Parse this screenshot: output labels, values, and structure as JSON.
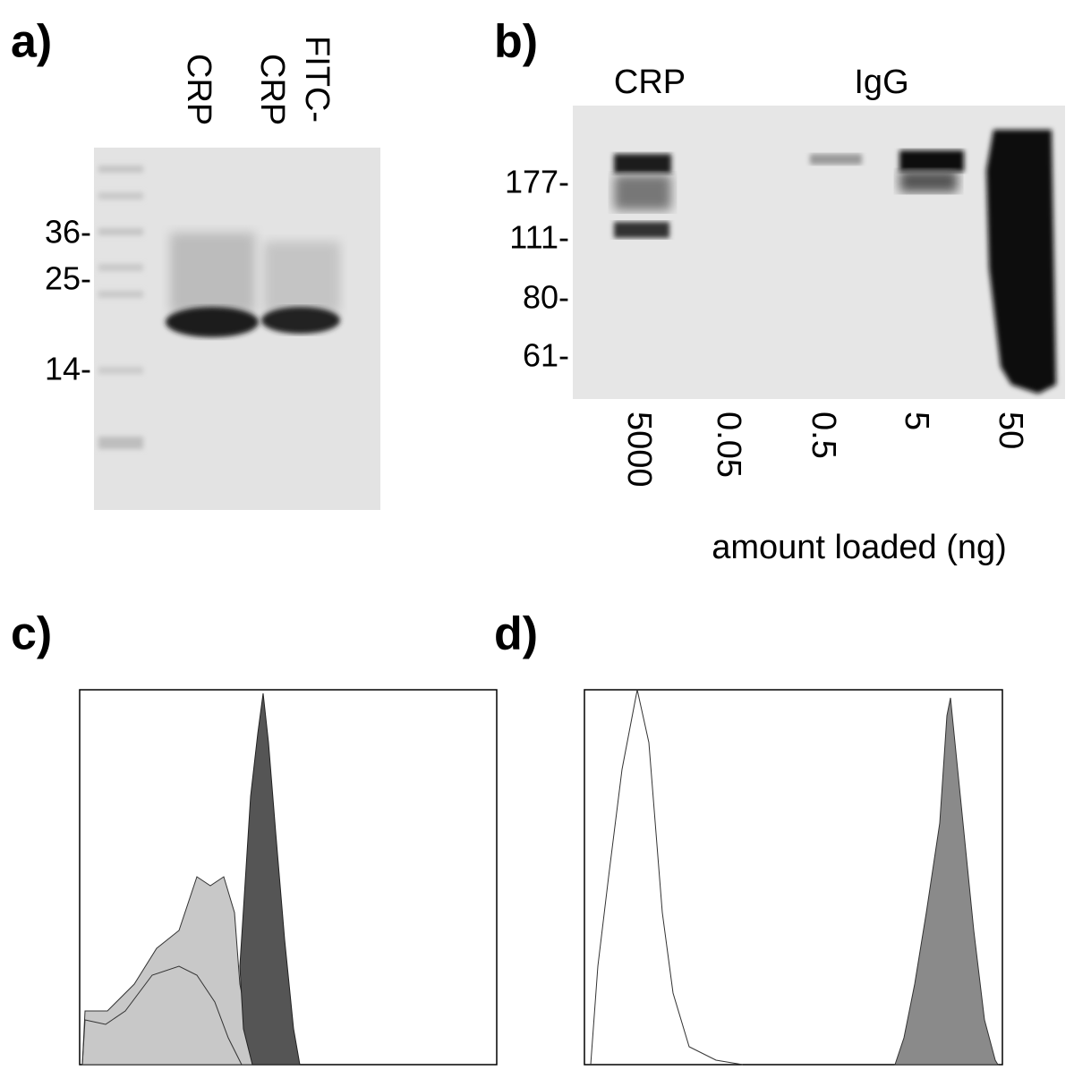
{
  "panels": [
    {
      "label": "a)",
      "lanes": [
        [
          "CRP"
        ],
        [
          "FITC-",
          "CRP"
        ]
      ],
      "markers": [
        "36-",
        "25-",
        "14-"
      ]
    },
    {
      "label": "b)",
      "groups": [
        "CRP",
        "IgG"
      ],
      "markers": [
        "177-",
        "111-",
        "80-",
        "61-"
      ],
      "amounts": [
        "5000",
        "0.05",
        "0.5",
        "5",
        "50"
      ],
      "amount_title": "amount loaded (ng)"
    },
    {
      "label": "c)"
    },
    {
      "label": "d)"
    }
  ]
}
